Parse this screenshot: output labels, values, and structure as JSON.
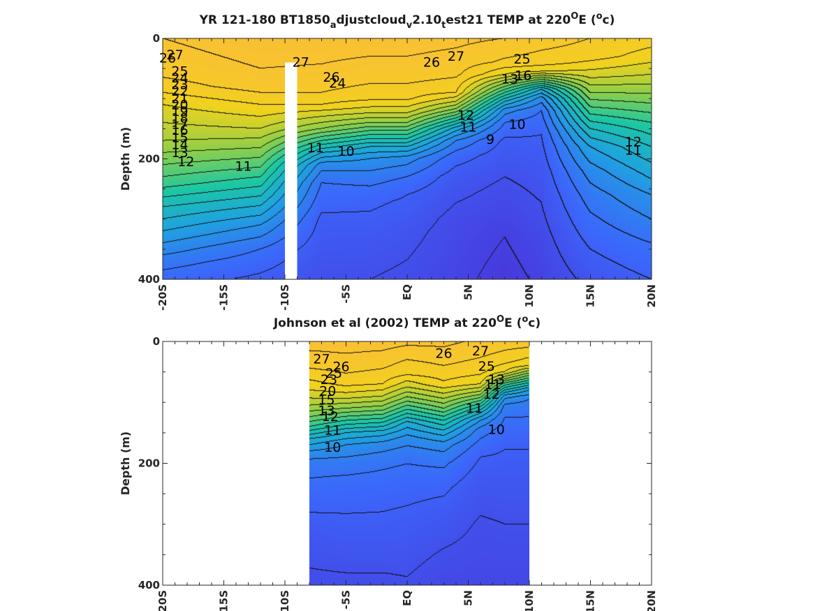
{
  "chart_data": [
    {
      "type": "heatmap",
      "panel": "model",
      "title": {
        "pre": "YR 121-180 BT1850",
        "sub1": "a",
        "mid1": "djustcloud",
        "sub2": "v",
        "mid2": "2.10",
        "sub3": "t",
        "post": "est21 TEMP at 220",
        "sup1": "O",
        "post2": "E (",
        "sup2": "o",
        "post3": "c)"
      },
      "ylabel": "Depth (m)",
      "xlim": [
        -20,
        20
      ],
      "ylim": [
        0,
        400
      ],
      "y_reversed": true,
      "x_ticks": [
        -20,
        -15,
        -10,
        -5,
        0,
        5,
        10,
        15,
        20
      ],
      "x_tick_labels": [
        "-20S",
        "-15S",
        "-10S",
        "-5S",
        "EQ",
        "5N",
        "10N",
        "15N",
        "20N"
      ],
      "y_ticks": [
        0,
        200,
        400
      ],
      "y_tick_labels": [
        "0",
        "200",
        "400"
      ],
      "data_extent_lat": [
        -20,
        20
      ],
      "gap": {
        "lat": [
          -10,
          -9
        ],
        "depth": [
          40,
          400
        ]
      },
      "colormap": [
        "#4a2fd6",
        "#3b68fb",
        "#1fa2e0",
        "#1bc7a5",
        "#8ccf4a",
        "#f1d21d",
        "#fbbd37"
      ],
      "color_range": [
        8,
        29
      ],
      "profiles": {
        "-20": {
          "d": [
            0,
            50,
            80,
            110,
            140,
            170,
            200,
            240,
            280,
            330,
            370,
            400
          ],
          "t": [
            28,
            27.5,
            26.5,
            25,
            24,
            23,
            21.5,
            19.5,
            17,
            14.5,
            12.5,
            11.5
          ]
        },
        "-12": {
          "d": [
            0,
            50,
            80,
            110,
            150,
            190,
            230,
            270,
            310,
            350,
            390,
            400
          ],
          "t": [
            28.5,
            28,
            27.5,
            26,
            24,
            21.5,
            19,
            16.5,
            14,
            12,
            11,
            10.8
          ]
        },
        "-7": {
          "d": [
            0,
            60,
            90,
            110,
            130,
            150,
            170,
            190,
            210,
            240,
            300,
            400
          ],
          "t": [
            28.5,
            27.8,
            27,
            26,
            24,
            22,
            19,
            16,
            13.5,
            12,
            10.8,
            10
          ]
        },
        "-3": {
          "d": [
            0,
            60,
            100,
            120,
            140,
            160,
            180,
            200,
            230,
            270,
            330,
            400
          ],
          "t": [
            28.5,
            27.5,
            26.2,
            24.5,
            22,
            19,
            16,
            14,
            12.5,
            11.2,
            10.5,
            10
          ]
        },
        "0": {
          "d": [
            0,
            60,
            100,
            120,
            140,
            160,
            180,
            200,
            230,
            260,
            320,
            400
          ],
          "t": [
            28.5,
            27.5,
            26.2,
            24.5,
            22,
            19,
            16,
            13.5,
            12,
            11,
            10.3,
            9.8
          ]
        },
        "4": {
          "d": [
            0,
            60,
            90,
            105,
            120,
            135,
            150,
            170,
            195,
            230,
            300,
            400
          ],
          "t": [
            28.3,
            27.2,
            26,
            24,
            21.5,
            18.5,
            15.5,
            13,
            11.5,
            10.5,
            9.7,
            9.3
          ]
        },
        "8": {
          "d": [
            0,
            40,
            60,
            75,
            90,
            105,
            120,
            140,
            170,
            230,
            330,
            400
          ],
          "t": [
            28,
            26.8,
            25,
            22,
            19,
            16,
            13.5,
            12,
            10.8,
            10,
            9,
            8.6
          ]
        },
        "11": {
          "d": [
            0,
            40,
            55,
            65,
            75,
            85,
            100,
            120,
            160,
            230,
            330,
            400
          ],
          "t": [
            27.5,
            26.5,
            25,
            22,
            19,
            16,
            13.5,
            12,
            11,
            10.3,
            9.6,
            9.2
          ]
        },
        "15": {
          "d": [
            0,
            30,
            60,
            90,
            120,
            150,
            180,
            220,
            260,
            300,
            350,
            400
          ],
          "t": [
            27,
            26.5,
            24.5,
            22,
            19.5,
            17,
            15,
            13.5,
            12.5,
            11.8,
            11,
            10.3
          ]
        },
        "20": {
          "d": [
            0,
            30,
            60,
            100,
            140,
            180,
            220,
            260,
            300,
            340,
            370,
            400
          ],
          "t": [
            26.5,
            25.5,
            24,
            21.5,
            19,
            17,
            15.5,
            14,
            13,
            12,
            11.5,
            11
          ]
        }
      },
      "contour_labels": [
        {
          "v": "27",
          "x": -19,
          "y": 28
        },
        {
          "v": "26",
          "x": -19.6,
          "y": 33
        },
        {
          "v": "25",
          "x": -18.6,
          "y": 55
        },
        {
          "v": "24",
          "x": -18.6,
          "y": 66
        },
        {
          "v": "23",
          "x": -18.6,
          "y": 77
        },
        {
          "v": "22",
          "x": -18.6,
          "y": 88
        },
        {
          "v": "21",
          "x": -18.6,
          "y": 100
        },
        {
          "v": "20",
          "x": -18.6,
          "y": 111
        },
        {
          "v": "19",
          "x": -18.6,
          "y": 122
        },
        {
          "v": "18",
          "x": -18.6,
          "y": 133
        },
        {
          "v": "17",
          "x": -18.6,
          "y": 143
        },
        {
          "v": "16",
          "x": -18.6,
          "y": 153
        },
        {
          "v": "15",
          "x": -18.6,
          "y": 165
        },
        {
          "v": "14",
          "x": -18.6,
          "y": 177
        },
        {
          "v": "13",
          "x": -18.6,
          "y": 190
        },
        {
          "v": "12",
          "x": -18.1,
          "y": 205
        },
        {
          "v": "11",
          "x": -13.4,
          "y": 213
        },
        {
          "v": "27",
          "x": -8.7,
          "y": 40
        },
        {
          "v": "26",
          "x": -6.2,
          "y": 65
        },
        {
          "v": "24",
          "x": -5.7,
          "y": 75
        },
        {
          "v": "11",
          "x": -7.5,
          "y": 182
        },
        {
          "v": "10",
          "x": -5,
          "y": 188
        },
        {
          "v": "26",
          "x": 2,
          "y": 40
        },
        {
          "v": "27",
          "x": 4,
          "y": 30
        },
        {
          "v": "25",
          "x": 9.4,
          "y": 35
        },
        {
          "v": "16",
          "x": 9.5,
          "y": 62
        },
        {
          "v": "13",
          "x": 8.4,
          "y": 68
        },
        {
          "v": "12",
          "x": 4.8,
          "y": 128
        },
        {
          "v": "11",
          "x": 5,
          "y": 148
        },
        {
          "v": "10",
          "x": 9,
          "y": 143
        },
        {
          "v": "9",
          "x": 6.8,
          "y": 168
        },
        {
          "v": "12",
          "x": 18.5,
          "y": 172
        },
        {
          "v": "11",
          "x": 18.5,
          "y": 186
        }
      ]
    },
    {
      "type": "heatmap",
      "panel": "obs",
      "title": {
        "pre": "Johnson et al (2002) TEMP at 220",
        "sup1": "O",
        "post2": "E (",
        "sup2": "o",
        "post3": "c)"
      },
      "ylabel": "Depth (m)",
      "xlim": [
        -20,
        20
      ],
      "ylim": [
        0,
        400
      ],
      "y_reversed": true,
      "x_ticks": [
        -20,
        -15,
        -10,
        -5,
        0,
        5,
        10,
        15,
        20
      ],
      "x_tick_labels": [
        "-20S",
        "-15S",
        "-10S",
        "-5S",
        "EQ",
        "5N",
        "10N",
        "15N",
        "20N"
      ],
      "y_ticks": [
        0,
        200,
        400
      ],
      "y_tick_labels": [
        "0",
        "200",
        "400"
      ],
      "data_extent_lat": [
        -8,
        10
      ],
      "colormap": [
        "#4a2fd6",
        "#3b68fb",
        "#1fa2e0",
        "#1bc7a5",
        "#8ccf4a",
        "#f1d21d",
        "#fbbd37"
      ],
      "color_range": [
        8,
        29
      ],
      "profiles": {
        "-8": {
          "d": [
            0,
            40,
            60,
            80,
            100,
            120,
            140,
            160,
            180,
            200,
            260,
            330,
            400
          ],
          "t": [
            28.5,
            27.2,
            26.2,
            25,
            23.5,
            21.5,
            19,
            16,
            14,
            12.5,
            11.3,
            10.3,
            9.8
          ]
        },
        "-5": {
          "d": [
            0,
            40,
            70,
            90,
            110,
            130,
            150,
            170,
            200,
            240,
            300,
            360,
            400
          ],
          "t": [
            28.5,
            27.5,
            26.3,
            24.5,
            22,
            19,
            16,
            14,
            12.5,
            11.5,
            10.8,
            10.2,
            9.8
          ]
        },
        "-2": {
          "d": [
            0,
            40,
            70,
            90,
            110,
            130,
            150,
            170,
            200,
            250,
            310,
            370,
            400
          ],
          "t": [
            28.5,
            27.2,
            26,
            24,
            21.5,
            18.5,
            15.5,
            13.5,
            12.2,
            11.3,
            10.7,
            10.1,
            9.8
          ]
        },
        "0": {
          "d": [
            0,
            30,
            55,
            75,
            95,
            115,
            135,
            160,
            190,
            240,
            300,
            360,
            400
          ],
          "t": [
            28.3,
            27,
            26,
            24,
            21.5,
            18.5,
            15.5,
            13.5,
            12.2,
            11.3,
            10.7,
            10.2,
            9.9
          ]
        },
        "3": {
          "d": [
            0,
            40,
            70,
            90,
            110,
            130,
            150,
            170,
            200,
            240,
            290,
            350,
            400
          ],
          "t": [
            28.3,
            27,
            25.8,
            23.5,
            21,
            18,
            15.5,
            13.5,
            12.2,
            11.2,
            10.5,
            9.9,
            9.5
          ]
        },
        "6": {
          "d": [
            0,
            50,
            70,
            85,
            100,
            115,
            130,
            145,
            165,
            190,
            230,
            300,
            400
          ],
          "t": [
            27.8,
            26.3,
            25,
            22.5,
            19.5,
            16.5,
            14,
            12.6,
            11.8,
            11,
            10.4,
            9.9,
            9.5
          ]
        },
        "8": {
          "d": [
            0,
            30,
            50,
            60,
            70,
            80,
            90,
            105,
            125,
            160,
            220,
            300,
            400
          ],
          "t": [
            27.5,
            26.5,
            25,
            22.5,
            19.5,
            17,
            14.5,
            12.8,
            12,
            11.2,
            10.5,
            10,
            9.5
          ]
        },
        "10": {
          "d": [
            0,
            20,
            40,
            50,
            60,
            70,
            80,
            95,
            115,
            160,
            220,
            300,
            400
          ],
          "t": [
            27.5,
            26.5,
            25,
            22.5,
            20,
            17.5,
            15,
            13,
            12.2,
            11.2,
            10.5,
            10,
            9.5
          ]
        }
      },
      "contour_labels": [
        {
          "v": "27",
          "x": -7,
          "y": 29
        },
        {
          "v": "26",
          "x": -5.4,
          "y": 42
        },
        {
          "v": "25",
          "x": -6,
          "y": 53
        },
        {
          "v": "23",
          "x": -6.4,
          "y": 63
        },
        {
          "v": "20",
          "x": -6.5,
          "y": 82
        },
        {
          "v": "15",
          "x": -6.6,
          "y": 96
        },
        {
          "v": "13",
          "x": -6.6,
          "y": 114
        },
        {
          "v": "12",
          "x": -6.3,
          "y": 124
        },
        {
          "v": "26",
          "x": 3,
          "y": 20
        },
        {
          "v": "27",
          "x": 6,
          "y": 16
        },
        {
          "v": "25",
          "x": 6.5,
          "y": 41
        },
        {
          "v": "11",
          "x": 7,
          "y": 71
        },
        {
          "v": "13",
          "x": 7.3,
          "y": 63
        },
        {
          "v": "12",
          "x": 6.9,
          "y": 87
        },
        {
          "v": "11",
          "x": 5.5,
          "y": 110
        },
        {
          "v": "10",
          "x": 7.3,
          "y": 145
        },
        {
          "v": "11",
          "x": -6.1,
          "y": 146
        },
        {
          "v": "10",
          "x": -6.1,
          "y": 174
        }
      ]
    }
  ]
}
